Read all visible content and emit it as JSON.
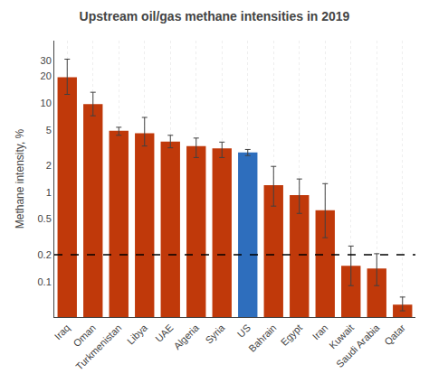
{
  "chart_data": {
    "type": "bar",
    "title": "Upstream oil/gas methane intensities in 2019",
    "ylabel": "Methane intensity, %",
    "categories": [
      "Iraq",
      "Oman",
      "Turkmenistan",
      "Libya",
      "UAE",
      "Algeria",
      "Syria",
      "US",
      "Bahrain",
      "Egypt",
      "Iran",
      "Kuwait",
      "Saudi Arabia",
      "Qatar"
    ],
    "values": [
      19.5,
      9.7,
      4.9,
      4.6,
      3.7,
      3.3,
      3.1,
      2.8,
      1.2,
      0.93,
      0.63,
      0.15,
      0.14,
      0.055
    ],
    "errors_low": [
      7.0,
      2.5,
      0.55,
      1.3,
      0.55,
      0.85,
      0.65,
      0.22,
      0.5,
      0.35,
      0.32,
      0.06,
      0.05,
      0.008
    ],
    "errors_high": [
      11.5,
      3.5,
      0.45,
      2.3,
      0.65,
      0.75,
      0.55,
      0.22,
      0.75,
      0.48,
      0.62,
      0.1,
      0.065,
      0.012
    ],
    "error_color": "#404040",
    "colors": [
      "#C0390A",
      "#C0390A",
      "#C0390A",
      "#C0390A",
      "#C0390A",
      "#C0390A",
      "#C0390A",
      "#2E6EBD",
      "#C0390A",
      "#C0390A",
      "#C0390A",
      "#C0390A",
      "#C0390A",
      "#C0390A"
    ],
    "log": "y",
    "ylim": [
      0.04,
      50
    ],
    "yticks": [
      0.1,
      0.2,
      0.5,
      1,
      2,
      5,
      10,
      20,
      30
    ],
    "grid": "x",
    "reference_lines": [
      {
        "y": 0.2,
        "color": "black",
        "line_style": "dashed"
      }
    ]
  }
}
